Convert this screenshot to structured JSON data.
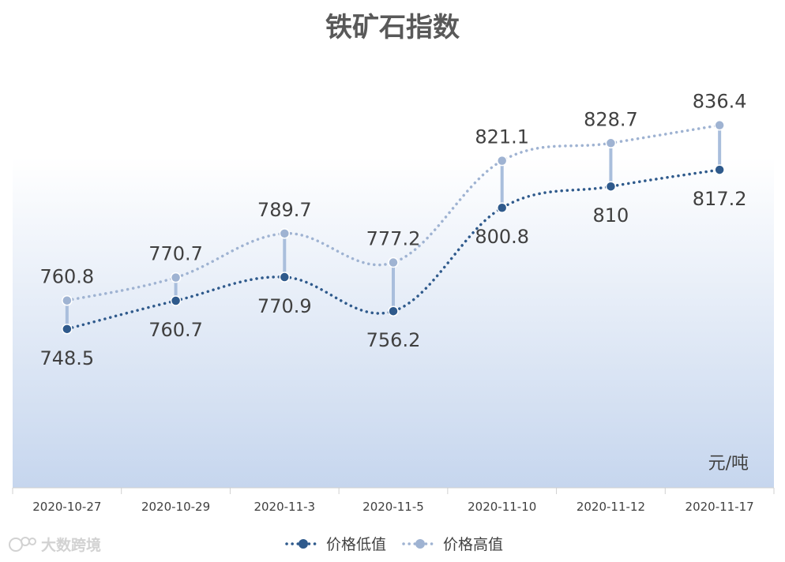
{
  "chart_data": {
    "type": "line",
    "title": "铁矿石指数",
    "unit_label": "元/吨",
    "categories": [
      "2020-10-27",
      "2020-10-29",
      "2020-11-3",
      "2020-11-5",
      "2020-11-10",
      "2020-11-12",
      "2020-11-17"
    ],
    "series": [
      {
        "name": "价格低值",
        "values": [
          748.5,
          760.7,
          770.9,
          756.2,
          800.8,
          810,
          817.2
        ],
        "labels": [
          "748.5",
          "760.7",
          "770.9",
          "756.2",
          "800.8",
          "810",
          "817.2"
        ],
        "color": "#2f5a8c",
        "label_position": "below"
      },
      {
        "name": "价格高值",
        "values": [
          760.8,
          770.7,
          789.7,
          777.2,
          821.1,
          828.7,
          836.4
        ],
        "labels": [
          "760.8",
          "770.7",
          "789.7",
          "777.2",
          "821.1",
          "828.7",
          "836.4"
        ],
        "color": "#9fb3d2",
        "label_position": "above"
      }
    ],
    "high_low_lines": true,
    "high_low_color": "#a9bedc",
    "line_style": "dotted-smooth",
    "ylim": [
      680,
      870
    ],
    "grid": false,
    "legend_position": "bottom",
    "background_gradient": [
      "#ffffff",
      "#c6d6ee"
    ]
  },
  "watermark": {
    "text": "大数跨境"
  }
}
